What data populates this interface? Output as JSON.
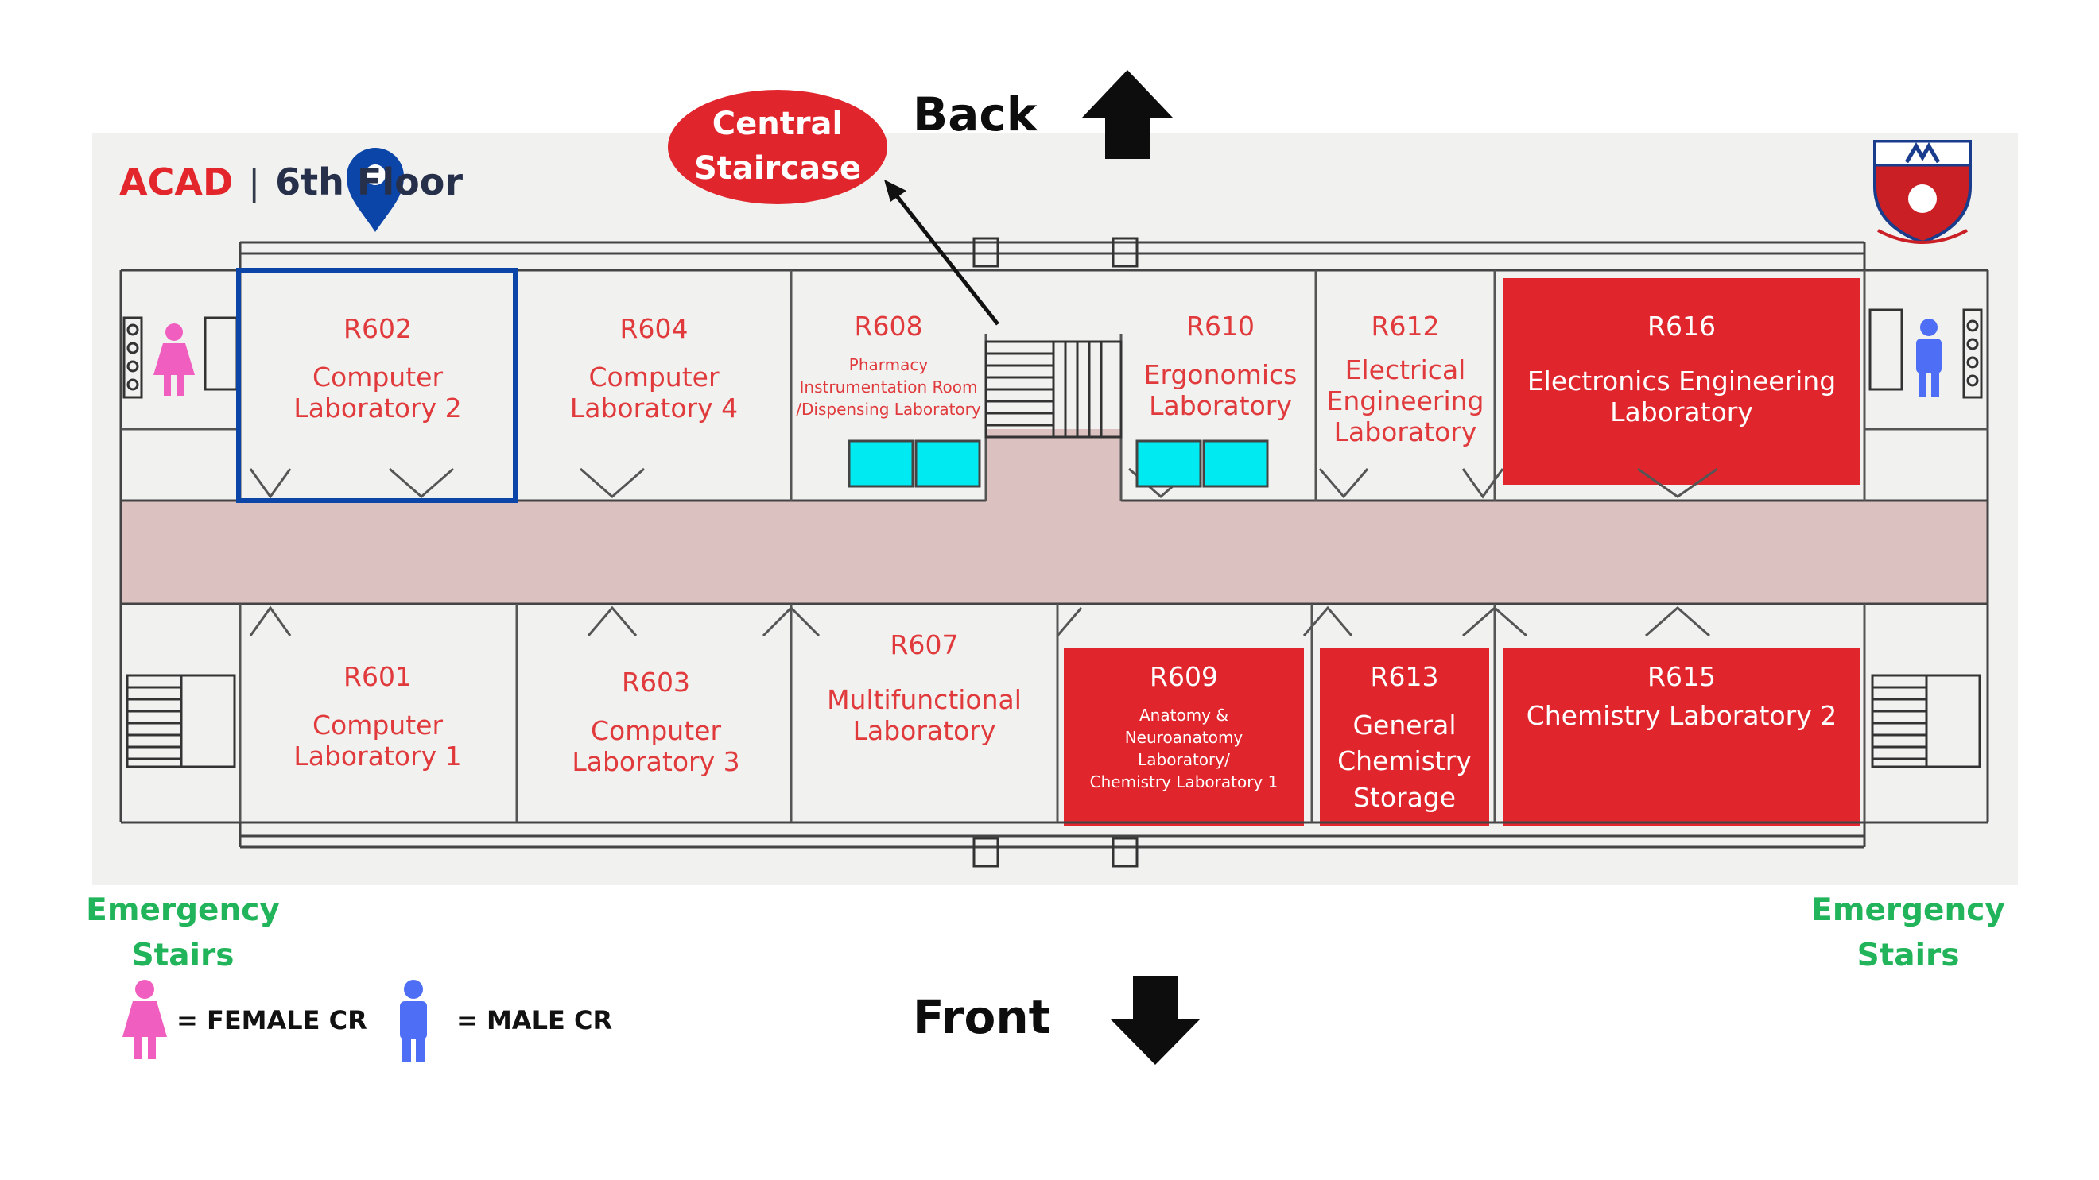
{
  "header": {
    "building": "ACAD",
    "separator": "|",
    "floor": "6th Floor"
  },
  "directions": {
    "back": "Back",
    "front": "Front",
    "central_staircase": "Central\nStaircase"
  },
  "emergency_left": "Emergency\nStairs",
  "emergency_right": "Emergency\nStairs",
  "legend": {
    "female": "= FEMALE CR",
    "male": "= MALE CR",
    "female_color": "#f05fc0",
    "male_color": "#4e6ff5"
  },
  "colors": {
    "room_text": "#e03a3c",
    "highlight_room": "#e0262c",
    "corridor": "#dcc1c1",
    "selected_outline": "#0c45a8",
    "lab_bench": "#00eaf2"
  },
  "location_marker": {
    "icon": "map-pin-icon",
    "room": "R602"
  },
  "rooms": {
    "r602": {
      "number": "R602",
      "name": "Computer\nLaboratory 2"
    },
    "r604": {
      "number": "R604",
      "name": "Computer\nLaboratory 4"
    },
    "r608": {
      "number": "R608",
      "name": "Pharmacy\nInstrumentation Room\n/Dispensing Laboratory"
    },
    "r610": {
      "number": "R610",
      "name": "Ergonomics\nLaboratory"
    },
    "r612": {
      "number": "R612",
      "name": "Electrical\nEngineering\nLaboratory"
    },
    "r616": {
      "number": "R616",
      "name": "Electronics Engineering\nLaboratory"
    },
    "r601": {
      "number": "R601",
      "name": "Computer\nLaboratory 1"
    },
    "r603": {
      "number": "R603",
      "name": "Computer\nLaboratory 3"
    },
    "r607": {
      "number": "R607",
      "name": "Multifunctional\nLaboratory"
    },
    "r609": {
      "number": "R609",
      "name": "Anatomy &\nNeuroanatomy\nLaboratory/\nChemistry Laboratory 1"
    },
    "r613": {
      "number": "R613",
      "name": "General\nChemistry\nStorage"
    },
    "r615": {
      "number": "R615",
      "name": "Chemistry Laboratory 2"
    }
  }
}
